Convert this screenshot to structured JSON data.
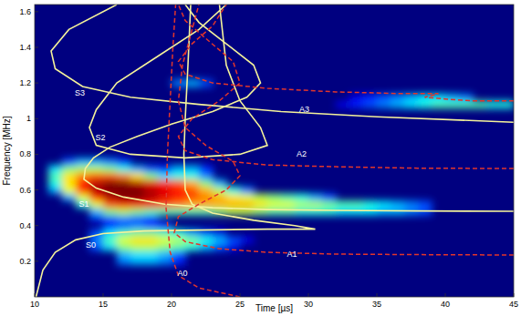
{
  "chart_data": {
    "type": "spectrogram",
    "x_label": "Time [µs]",
    "y_label": "Frequency [MHz]",
    "xlim": [
      10,
      45
    ],
    "ylim": [
      0,
      1.64
    ],
    "xticks": [
      10,
      15,
      20,
      25,
      30,
      35,
      40,
      45
    ],
    "yticks": [
      0.2,
      0.4,
      0.6,
      0.8,
      1,
      1.2,
      1.4,
      1.6
    ],
    "heatmap": {
      "bin_size": [
        1,
        0.04
      ],
      "zlim": [
        0,
        1
      ],
      "rows": [
        {
          "f": 0.2,
          "t0": 16,
          "v": [
            0.25,
            0.3,
            0.3,
            0.25,
            0.15
          ]
        },
        {
          "f": 0.24,
          "t0": 16,
          "v": [
            0.3,
            0.35,
            0.35,
            0.3,
            0.2
          ]
        },
        {
          "f": 0.28,
          "t0": 14,
          "v": [
            0.2,
            0.35,
            0.5,
            0.55,
            0.55,
            0.5,
            0.45,
            0.4,
            0.3,
            0.2,
            0.1
          ]
        },
        {
          "f": 0.32,
          "t0": 14,
          "v": [
            0.25,
            0.45,
            0.6,
            0.65,
            0.65,
            0.6,
            0.55,
            0.5,
            0.4,
            0.3,
            0.2,
            0.1
          ]
        },
        {
          "f": 0.36,
          "t0": 14,
          "v": [
            0.2,
            0.35,
            0.45,
            0.5,
            0.5,
            0.45,
            0.4,
            0.3,
            0.2,
            0.1
          ]
        },
        {
          "f": 0.4,
          "t0": 15,
          "v": [
            0.15,
            0.2,
            0.25,
            0.2,
            0.15
          ]
        },
        {
          "f": 0.44,
          "t0": 14,
          "v": [
            0.1,
            0.2,
            0.25,
            0.2,
            0.15
          ]
        },
        {
          "f": 0.48,
          "t0": 14,
          "v": [
            0.3,
            0.5,
            0.55,
            0.5,
            0.45,
            0.45,
            0.45,
            0.45,
            0.45,
            0.5,
            0.55,
            0.55,
            0.5,
            0.45,
            0.45,
            0.4,
            0.4,
            0.4,
            0.35,
            0.35,
            0.35,
            0.3,
            0.3,
            0.25,
            0.2
          ]
        },
        {
          "f": 0.52,
          "t0": 13,
          "v": [
            0.4,
            0.6,
            0.8,
            0.85,
            0.85,
            0.85,
            0.8,
            0.75,
            0.7,
            0.7,
            0.7,
            0.7,
            0.7,
            0.65,
            0.6,
            0.6,
            0.55,
            0.55,
            0.5,
            0.45,
            0.45,
            0.4,
            0.35,
            0.3,
            0.25,
            0.2
          ]
        },
        {
          "f": 0.56,
          "t0": 12,
          "v": [
            0.3,
            0.6,
            0.85,
            0.95,
            1,
            1,
            0.95,
            0.9,
            0.85,
            0.8,
            0.75,
            0.7,
            0.65,
            0.6,
            0.55,
            0.5,
            0.45,
            0.4,
            0.3,
            0.2
          ]
        },
        {
          "f": 0.6,
          "t0": 11,
          "v": [
            0.3,
            0.6,
            0.85,
            0.95,
            1,
            1,
            1,
            0.95,
            0.9,
            0.85,
            0.8,
            0.7,
            0.55,
            0.4,
            0.25
          ]
        },
        {
          "f": 0.64,
          "t0": 11,
          "v": [
            0.4,
            0.65,
            0.85,
            0.95,
            1,
            1,
            0.95,
            0.9,
            0.85,
            0.8,
            0.7,
            0.5,
            0.3
          ]
        },
        {
          "f": 0.68,
          "t0": 11,
          "v": [
            0.45,
            0.65,
            0.75,
            0.8,
            0.8,
            0.75,
            0.65,
            0.5,
            0.35,
            0.4,
            0.4,
            0.25
          ]
        },
        {
          "f": 0.72,
          "t0": 11,
          "v": [
            0.35,
            0.5,
            0.55,
            0.55,
            0.5,
            0.4,
            0.3,
            0.2,
            0.15,
            0.3,
            0.3,
            0.15
          ]
        },
        {
          "f": 0.76,
          "t0": 12,
          "v": [
            0.2,
            0.3,
            0.3,
            0.25,
            0.15
          ]
        },
        {
          "f": 1.08,
          "t0": 32,
          "v": [
            0.1,
            0.15,
            0.2,
            0.25,
            0.3,
            0.35,
            0.4,
            0.45,
            0.45,
            0.45,
            0.45,
            0.4,
            0.4
          ]
        },
        {
          "f": 1.12,
          "t0": 33,
          "v": [
            0.1,
            0.15,
            0.2,
            0.25,
            0.3,
            0.35,
            0.35,
            0.3,
            0.25
          ]
        },
        {
          "f": 1.2,
          "t0": 20,
          "v": [
            0.25,
            0.3,
            0.2
          ]
        }
      ]
    },
    "series": [
      {
        "name": "S0",
        "type": "line",
        "color": "#f4f29a",
        "line_style": "solid",
        "label_at": [
          14.1,
          0.29
        ],
        "x": [
          10.1,
          10.6,
          11.5,
          13,
          15,
          18,
          22,
          27,
          30.5,
          29,
          26,
          23,
          21.5,
          21,
          20.9,
          21,
          21.2,
          21.4
        ],
        "values": [
          0,
          0.15,
          0.25,
          0.32,
          0.355,
          0.37,
          0.375,
          0.38,
          0.38,
          0.4,
          0.43,
          0.47,
          0.52,
          0.6,
          0.8,
          1,
          1.3,
          1.64
        ]
      },
      {
        "name": "S1",
        "type": "line",
        "color": "#f4f29a",
        "line_style": "solid",
        "label_at": [
          13.6,
          0.52
        ],
        "x": [
          45,
          38,
          32,
          27,
          23,
          19.5,
          16.5,
          14.5,
          13.6,
          13.7,
          14.3,
          15.5,
          17.5,
          20,
          23,
          25.5,
          26.5,
          26,
          24,
          22,
          21
        ],
        "values": [
          0.48,
          0.482,
          0.485,
          0.49,
          0.5,
          0.52,
          0.56,
          0.61,
          0.66,
          0.72,
          0.78,
          0.84,
          0.9,
          0.97,
          1.04,
          1.12,
          1.2,
          1.3,
          1.42,
          1.54,
          1.64
        ]
      },
      {
        "name": "S2",
        "type": "line",
        "color": "#f4f29a",
        "line_style": "solid",
        "label_at": [
          14.8,
          0.89
        ],
        "x": [
          24,
          22,
          19,
          16,
          14.5,
          14,
          14.5,
          17,
          21,
          25,
          27,
          26.5,
          25,
          24,
          23.5
        ],
        "values": [
          1.64,
          1.5,
          1.35,
          1.2,
          1.05,
          0.95,
          0.85,
          0.8,
          0.78,
          0.8,
          0.85,
          0.95,
          1.1,
          1.3,
          1.64
        ]
      },
      {
        "name": "S3",
        "type": "line",
        "color": "#f4f29a",
        "line_style": "solid",
        "label_at": [
          13.3,
          1.14
        ],
        "x": [
          16,
          12.5,
          11.2,
          11.5,
          13.5,
          17,
          22,
          28,
          35,
          45
        ],
        "values": [
          1.64,
          1.5,
          1.38,
          1.28,
          1.18,
          1.12,
          1.08,
          1.04,
          1.01,
          0.98
        ]
      },
      {
        "name": "A0",
        "type": "line",
        "color": "#e2352b",
        "line_style": "dashed",
        "label_at": [
          20.8,
          0.13
        ],
        "x": [
          25,
          22,
          20.5,
          19.9,
          19.6,
          19.7,
          19.9,
          20.1,
          20.3
        ],
        "values": [
          0,
          0.05,
          0.12,
          0.25,
          0.5,
          0.8,
          1.1,
          1.4,
          1.64
        ]
      },
      {
        "name": "A1",
        "type": "line",
        "color": "#e2352b",
        "line_style": "dashed",
        "label_at": [
          28.8,
          0.235
        ],
        "x": [
          45,
          38,
          32,
          27,
          23.5,
          21,
          20.2,
          20.5,
          22,
          24,
          25,
          24.5,
          22.5,
          21,
          20.5,
          20.8,
          21.5,
          22
        ],
        "values": [
          0.235,
          0.237,
          0.24,
          0.25,
          0.27,
          0.31,
          0.36,
          0.45,
          0.52,
          0.6,
          0.68,
          0.76,
          0.85,
          0.95,
          1.1,
          1.3,
          1.5,
          1.64
        ]
      },
      {
        "name": "A2",
        "type": "line",
        "color": "#e2352b",
        "line_style": "dashed",
        "label_at": [
          29.5,
          0.8
        ],
        "x": [
          45,
          38,
          32,
          27,
          23,
          21,
          20.5,
          21.5,
          23.5,
          25,
          24.5,
          22.5,
          21,
          20.5
        ],
        "values": [
          0.72,
          0.722,
          0.73,
          0.74,
          0.77,
          0.82,
          0.9,
          1,
          1.1,
          1.2,
          1.32,
          1.45,
          1.55,
          1.64
        ]
      },
      {
        "name": "A3",
        "type": "line",
        "color": "#e2352b",
        "line_style": "dashed",
        "label_at": [
          29.7,
          1.05
        ],
        "x": [
          45,
          42,
          40,
          38.5,
          39.5,
          37,
          32,
          27,
          23,
          21,
          20.5,
          21.5,
          23,
          24
        ],
        "values": [
          1.1,
          1.1,
          1.11,
          1.12,
          1.14,
          1.14,
          1.15,
          1.17,
          1.2,
          1.25,
          1.32,
          1.42,
          1.52,
          1.64
        ]
      }
    ]
  }
}
